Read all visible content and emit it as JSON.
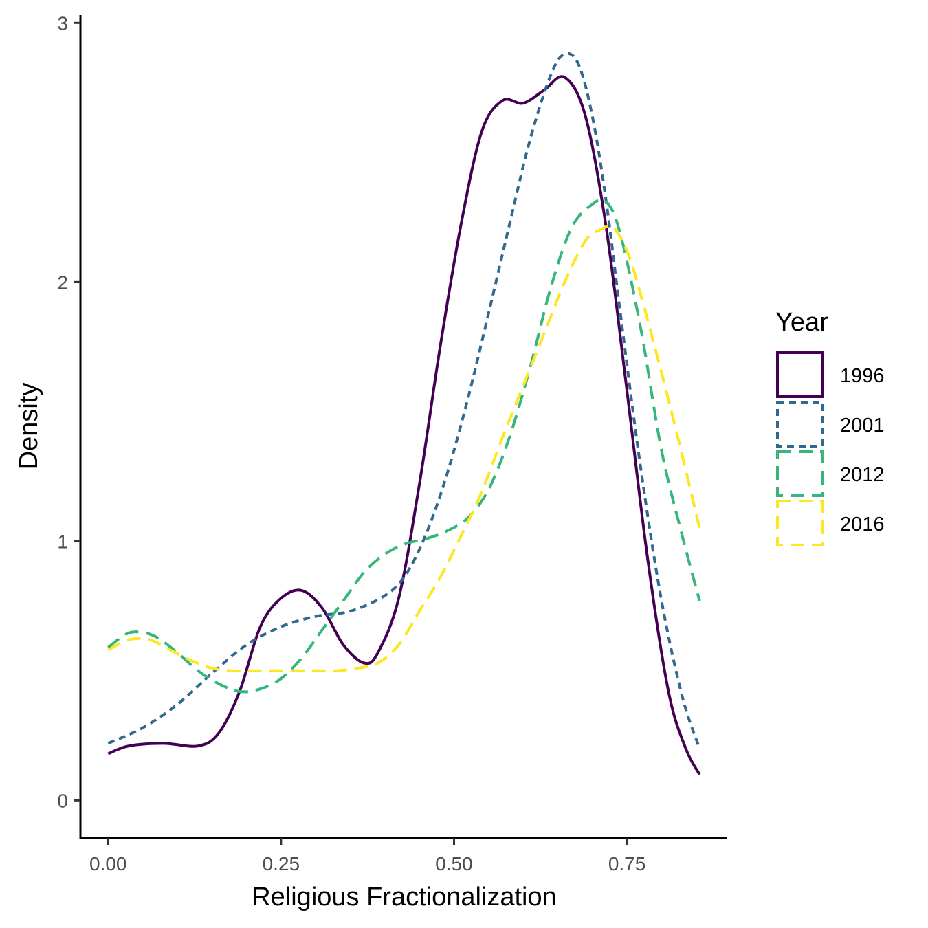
{
  "chart_data": {
    "type": "line",
    "title": "",
    "xlabel": "Religious Fractionalization",
    "ylabel": "Density",
    "xlim": [
      -0.04,
      0.895
    ],
    "ylim": [
      -0.145,
      3.03
    ],
    "xticks": [
      0,
      0.25,
      0.5,
      0.75
    ],
    "xtick_labels": [
      "0.00",
      "0.25",
      "0.50",
      "0.75"
    ],
    "yticks": [
      0,
      1,
      2,
      3
    ],
    "ytick_labels": [
      "0",
      "1",
      "2",
      "3"
    ],
    "grid": false,
    "legend": {
      "title": "Year",
      "position": "right"
    },
    "series": [
      {
        "name": "1996",
        "color": "#440154",
        "dash": "solid",
        "x": [
          0,
          0.03,
          0.08,
          0.13,
          0.16,
          0.19,
          0.22,
          0.25,
          0.28,
          0.31,
          0.34,
          0.37,
          0.39,
          0.42,
          0.45,
          0.48,
          0.51,
          0.54,
          0.57,
          0.6,
          0.63,
          0.66,
          0.69,
          0.72,
          0.75,
          0.78,
          0.81,
          0.835,
          0.855
        ],
        "values": [
          0.18,
          0.21,
          0.22,
          0.21,
          0.26,
          0.42,
          0.67,
          0.78,
          0.81,
          0.74,
          0.6,
          0.53,
          0.57,
          0.78,
          1.22,
          1.75,
          2.22,
          2.58,
          2.7,
          2.69,
          2.74,
          2.79,
          2.64,
          2.21,
          1.58,
          0.93,
          0.42,
          0.2,
          0.1
        ]
      },
      {
        "name": "2001",
        "color": "#31688e",
        "dash": "short-dash",
        "x": [
          0,
          0.05,
          0.1,
          0.15,
          0.2,
          0.25,
          0.3,
          0.35,
          0.4,
          0.43,
          0.46,
          0.49,
          0.52,
          0.55,
          0.58,
          0.61,
          0.64,
          0.66,
          0.68,
          0.7,
          0.72,
          0.74,
          0.77,
          0.8,
          0.83,
          0.855
        ],
        "values": [
          0.22,
          0.28,
          0.37,
          0.49,
          0.6,
          0.67,
          0.71,
          0.73,
          0.79,
          0.87,
          1.03,
          1.26,
          1.55,
          1.88,
          2.22,
          2.55,
          2.8,
          2.88,
          2.84,
          2.64,
          2.31,
          1.89,
          1.28,
          0.77,
          0.4,
          0.2
        ]
      },
      {
        "name": "2012",
        "color": "#35b779",
        "dash": "long-dash",
        "x": [
          0,
          0.025,
          0.045,
          0.07,
          0.1,
          0.13,
          0.16,
          0.19,
          0.22,
          0.25,
          0.28,
          0.31,
          0.34,
          0.37,
          0.4,
          0.43,
          0.46,
          0.49,
          0.52,
          0.55,
          0.58,
          0.61,
          0.64,
          0.67,
          0.7,
          0.72,
          0.74,
          0.77,
          0.8,
          0.83,
          0.855
        ],
        "values": [
          0.59,
          0.64,
          0.65,
          0.63,
          0.57,
          0.5,
          0.45,
          0.42,
          0.43,
          0.47,
          0.55,
          0.66,
          0.77,
          0.88,
          0.95,
          0.99,
          1.01,
          1.04,
          1.09,
          1.2,
          1.4,
          1.67,
          1.98,
          2.21,
          2.3,
          2.31,
          2.19,
          1.82,
          1.35,
          1.02,
          0.77
        ]
      },
      {
        "name": "2016",
        "color": "#fde725",
        "dash": "long-dash",
        "x": [
          0,
          0.03,
          0.06,
          0.09,
          0.12,
          0.15,
          0.18,
          0.21,
          0.24,
          0.27,
          0.3,
          0.33,
          0.36,
          0.39,
          0.42,
          0.45,
          0.48,
          0.51,
          0.54,
          0.57,
          0.6,
          0.63,
          0.66,
          0.69,
          0.71,
          0.73,
          0.75,
          0.77,
          0.8,
          0.83,
          0.855
        ],
        "values": [
          0.58,
          0.62,
          0.62,
          0.58,
          0.54,
          0.51,
          0.5,
          0.5,
          0.5,
          0.5,
          0.5,
          0.5,
          0.51,
          0.53,
          0.6,
          0.73,
          0.86,
          1.02,
          1.19,
          1.4,
          1.6,
          1.8,
          2.0,
          2.16,
          2.2,
          2.21,
          2.12,
          1.95,
          1.65,
          1.33,
          1.05
        ]
      }
    ]
  }
}
